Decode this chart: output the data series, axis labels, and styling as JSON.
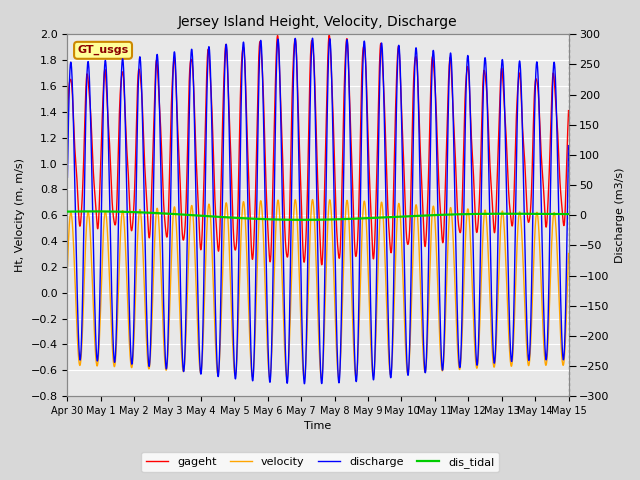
{
  "title": "Jersey Island Height, Velocity, Discharge",
  "xlabel": "Time",
  "ylabel_left": "Ht, Velocity (m, m/s)",
  "ylabel_right": "Discharge (m3/s)",
  "ylim_left": [
    -0.8,
    2.0
  ],
  "ylim_right": [
    -300,
    300
  ],
  "yticks_left": [
    -0.8,
    -0.6,
    -0.4,
    -0.2,
    0.0,
    0.2,
    0.4,
    0.6,
    0.8,
    1.0,
    1.2,
    1.4,
    1.6,
    1.8,
    2.0
  ],
  "yticks_right": [
    -300,
    -250,
    -200,
    -150,
    -100,
    -50,
    0,
    50,
    100,
    150,
    200,
    250,
    300
  ],
  "colors": {
    "gageht": "#ff0000",
    "velocity": "#ffa500",
    "discharge": "#0000ff",
    "dis_tidal": "#00cc00"
  },
  "linewidths": {
    "gageht": 1.0,
    "velocity": 1.0,
    "discharge": 1.0,
    "dis_tidal": 1.6
  },
  "legend_box_color": "#ffff99",
  "legend_box_edge": "#cc8800",
  "legend_text": "GT_usgs",
  "bg_color": "#d8d8d8",
  "plot_bg_color": "#e8e8e8",
  "n_days": 15,
  "tidal_period_hours": 12.4,
  "xtick_labels": [
    "Apr 30",
    "May 1",
    "May 2",
    "May 3",
    "May 4",
    "May 5",
    "May 6",
    "May 7",
    "May 8",
    "May 9",
    "May 10",
    "May 11",
    "May 12",
    "May 13",
    "May 14",
    "May 15"
  ]
}
